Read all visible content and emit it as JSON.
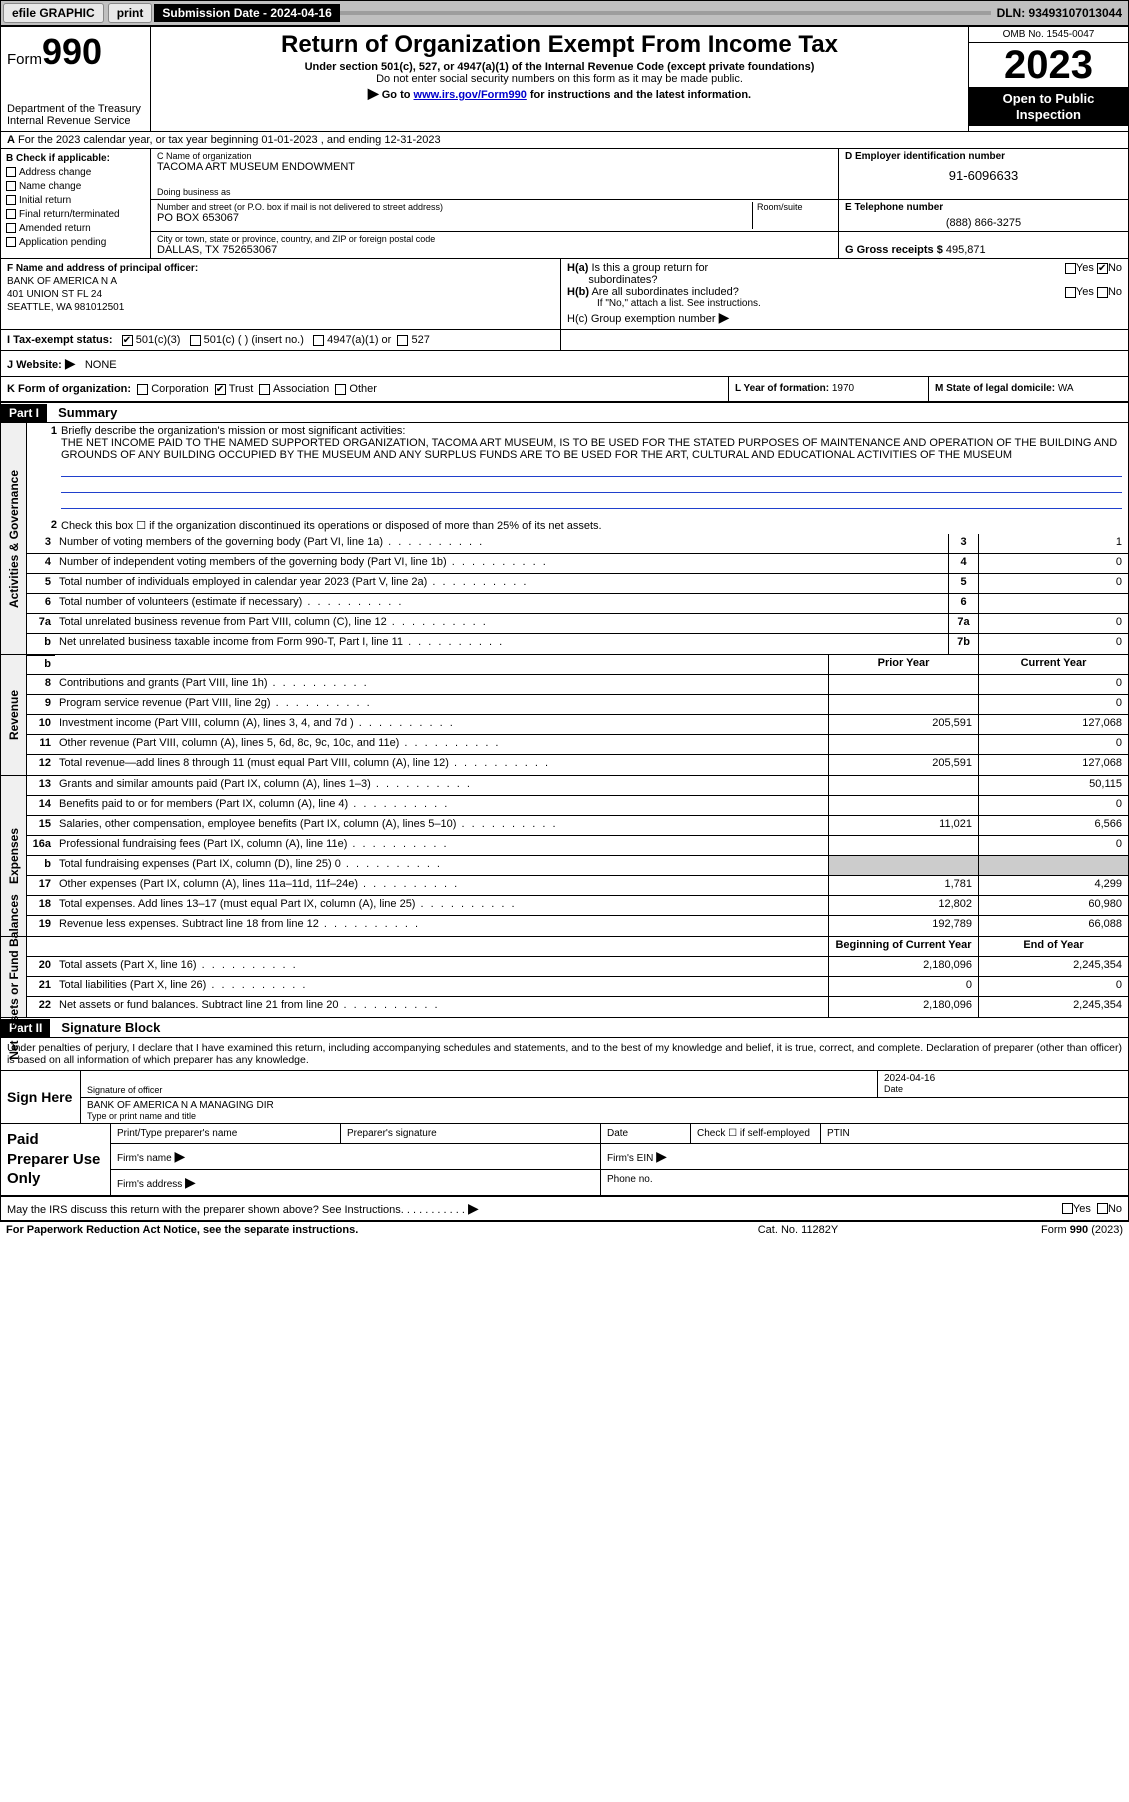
{
  "topbar": {
    "efile": "efile GRAPHIC",
    "print": "print",
    "sub_label": "Submission Date - 2024-04-16",
    "dln": "DLN: 93493107013044"
  },
  "header": {
    "form_prefix": "Form",
    "form_no": "990",
    "dept": "Department of the Treasury",
    "irs": "Internal Revenue Service",
    "title": "Return of Organization Exempt From Income Tax",
    "sub1": "Under section 501(c), 527, or 4947(a)(1) of the Internal Revenue Code (except private foundations)",
    "sub2": "Do not enter social security numbers on this form as it may be made public.",
    "sub3_pre": "Go to ",
    "sub3_link": "www.irs.gov/Form990",
    "sub3_post": " for instructions and the latest information.",
    "omb": "OMB No. 1545-0047",
    "year": "2023",
    "open": "Open to Public Inspection"
  },
  "row_a": {
    "label": "A",
    "text": "For the 2023 calendar year, or tax year beginning 01-01-2023   , and ending 12-31-2023"
  },
  "col_b": {
    "label": "B Check if applicable:",
    "opts": [
      "Address change",
      "Name change",
      "Initial return",
      "Final return/terminated",
      "Amended return",
      "Application pending"
    ]
  },
  "block_c": {
    "c_lbl": "C Name of organization",
    "c_name": "TACOMA ART MUSEUM ENDOWMENT",
    "dba_lbl": "Doing business as",
    "dba": "",
    "addr_lbl": "Number and street (or P.O. box if mail is not delivered to street address)",
    "room_lbl": "Room/suite",
    "addr": "PO BOX 653067",
    "city_lbl": "City or town, state or province, country, and ZIP or foreign postal code",
    "city": "DALLAS, TX  752653067"
  },
  "block_d": {
    "d_lbl": "D Employer identification number",
    "d_val": "91-6096633",
    "e_lbl": "E Telephone number",
    "e_val": "(888) 866-3275",
    "g_lbl": "G Gross receipts $",
    "g_val": "495,871"
  },
  "block_f": {
    "lbl": "F  Name and address of principal officer:",
    "l1": "BANK OF AMERICA N A",
    "l2": "401 UNION ST FL 24",
    "l3": "SEATTLE, WA  981012501"
  },
  "block_h": {
    "ha": "H(a)  Is this a group return for subordinates?",
    "hb": "H(b)  Are all subordinates included?",
    "hb_note": "If \"No,\" attach a list. See instructions.",
    "hc": "H(c)  Group exemption number"
  },
  "row_i": {
    "lbl": "I  Tax-exempt status:",
    "o1": "501(c)(3)",
    "o2": "501(c) (   ) (insert no.)",
    "o3": "4947(a)(1) or",
    "o4": "527"
  },
  "row_j": {
    "lbl": "J  Website:",
    "val": "NONE"
  },
  "row_k": {
    "lbl": "K Form of organization:",
    "o1": "Corporation",
    "o2": "Trust",
    "o3": "Association",
    "o4": "Other"
  },
  "row_l": {
    "lbl": "L Year of formation:",
    "val": "1970"
  },
  "row_m": {
    "lbl": "M State of legal domicile:",
    "val": "WA"
  },
  "part1": {
    "num": "Part I",
    "title": "Summary"
  },
  "governance": {
    "side": "Activities & Governance",
    "l1_lbl": "Briefly describe the organization's mission or most significant activities:",
    "l1_txt": "THE NET INCOME PAID TO THE NAMED SUPPORTED ORGANIZATION, TACOMA ART MUSEUM, IS TO BE USED FOR THE STATED PURPOSES OF MAINTENANCE AND OPERATION OF THE BUILDING AND GROUNDS OF ANY BUILDING OCCUPIED BY THE MUSEUM AND ANY SURPLUS FUNDS ARE TO BE USED FOR THE ART, CULTURAL AND EDUCATIONAL ACTIVITIES OF THE MUSEUM",
    "l2": "Check this box  ☐  if the organization discontinued its operations or disposed of more than 25% of its net assets.",
    "rows": [
      {
        "n": "3",
        "d": "Number of voting members of the governing body (Part VI, line 1a)",
        "m": "3",
        "v": "1"
      },
      {
        "n": "4",
        "d": "Number of independent voting members of the governing body (Part VI, line 1b)",
        "m": "4",
        "v": "0"
      },
      {
        "n": "5",
        "d": "Total number of individuals employed in calendar year 2023 (Part V, line 2a)",
        "m": "5",
        "v": "0"
      },
      {
        "n": "6",
        "d": "Total number of volunteers (estimate if necessary)",
        "m": "6",
        "v": ""
      },
      {
        "n": "7a",
        "d": "Total unrelated business revenue from Part VIII, column (C), line 12",
        "m": "7a",
        "v": "0"
      },
      {
        "n": "b",
        "d": "Net unrelated business taxable income from Form 990-T, Part I, line 11",
        "m": "7b",
        "v": "0"
      }
    ]
  },
  "revenue": {
    "side": "Revenue",
    "hdr_prior": "Prior Year",
    "hdr_curr": "Current Year",
    "rows": [
      {
        "n": "8",
        "d": "Contributions and grants (Part VIII, line 1h)",
        "p": "",
        "c": "0"
      },
      {
        "n": "9",
        "d": "Program service revenue (Part VIII, line 2g)",
        "p": "",
        "c": "0"
      },
      {
        "n": "10",
        "d": "Investment income (Part VIII, column (A), lines 3, 4, and 7d )",
        "p": "205,591",
        "c": "127,068"
      },
      {
        "n": "11",
        "d": "Other revenue (Part VIII, column (A), lines 5, 6d, 8c, 9c, 10c, and 11e)",
        "p": "",
        "c": "0"
      },
      {
        "n": "12",
        "d": "Total revenue—add lines 8 through 11 (must equal Part VIII, column (A), line 12)",
        "p": "205,591",
        "c": "127,068"
      }
    ]
  },
  "expenses": {
    "side": "Expenses",
    "rows": [
      {
        "n": "13",
        "d": "Grants and similar amounts paid (Part IX, column (A), lines 1–3)",
        "p": "",
        "c": "50,115"
      },
      {
        "n": "14",
        "d": "Benefits paid to or for members (Part IX, column (A), line 4)",
        "p": "",
        "c": "0"
      },
      {
        "n": "15",
        "d": "Salaries, other compensation, employee benefits (Part IX, column (A), lines 5–10)",
        "p": "11,021",
        "c": "6,566"
      },
      {
        "n": "16a",
        "d": "Professional fundraising fees (Part IX, column (A), line 11e)",
        "p": "",
        "c": "0"
      },
      {
        "n": "b",
        "d": "Total fundraising expenses (Part IX, column (D), line 25) 0",
        "p": "grey",
        "c": "grey"
      },
      {
        "n": "17",
        "d": "Other expenses (Part IX, column (A), lines 11a–11d, 11f–24e)",
        "p": "1,781",
        "c": "4,299"
      },
      {
        "n": "18",
        "d": "Total expenses. Add lines 13–17 (must equal Part IX, column (A), line 25)",
        "p": "12,802",
        "c": "60,980"
      },
      {
        "n": "19",
        "d": "Revenue less expenses. Subtract line 18 from line 12",
        "p": "192,789",
        "c": "66,088"
      }
    ]
  },
  "netassets": {
    "side": "Net Assets or Fund Balances",
    "hdr_beg": "Beginning of Current Year",
    "hdr_end": "End of Year",
    "rows": [
      {
        "n": "20",
        "d": "Total assets (Part X, line 16)",
        "p": "2,180,096",
        "c": "2,245,354"
      },
      {
        "n": "21",
        "d": "Total liabilities (Part X, line 26)",
        "p": "0",
        "c": "0"
      },
      {
        "n": "22",
        "d": "Net assets or fund balances. Subtract line 21 from line 20",
        "p": "2,180,096",
        "c": "2,245,354"
      }
    ]
  },
  "part2": {
    "num": "Part II",
    "title": "Signature Block"
  },
  "sig": {
    "decl": "Under penalties of perjury, I declare that I have examined this return, including accompanying schedules and statements, and to the best of my knowledge and belief, it is true, correct, and complete. Declaration of preparer (other than officer) is based on all information of which preparer has any knowledge.",
    "sign_here": "Sign Here",
    "sig_off": "Signature of officer",
    "date_lbl": "Date",
    "date_val": "2024-04-16",
    "name": "BANK OF AMERICA N A  MANAGING DIR",
    "name_lbl": "Type or print name and title"
  },
  "paid": {
    "lbl": "Paid Preparer Use Only",
    "c1": "Print/Type preparer's name",
    "c2": "Preparer's signature",
    "c3": "Date",
    "c4": "Check ☐ if self-employed",
    "c5": "PTIN",
    "firm_name": "Firm's name",
    "firm_ein": "Firm's EIN",
    "firm_addr": "Firm's address",
    "phone": "Phone no."
  },
  "footer": {
    "discuss": "May the IRS discuss this return with the preparer shown above? See Instructions.",
    "pra": "For Paperwork Reduction Act Notice, see the separate instructions.",
    "cat": "Cat. No. 11282Y",
    "formno": "Form 990 (2023)"
  }
}
